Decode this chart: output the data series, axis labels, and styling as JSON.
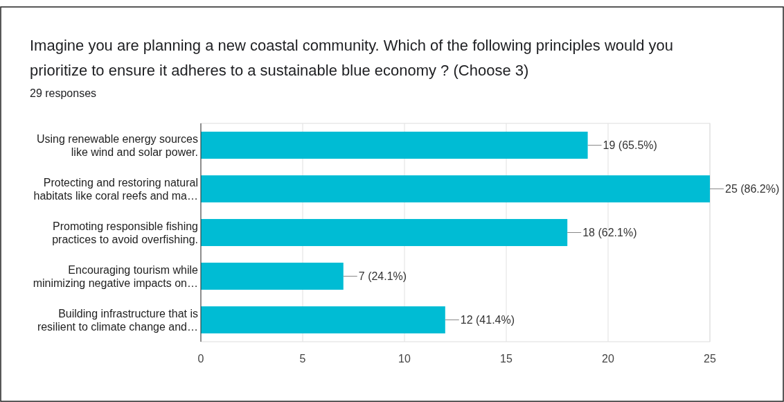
{
  "chart_data": {
    "type": "bar",
    "orientation": "horizontal",
    "title": "Imagine you are planning a new coastal community. Which of the following principles would you prioritize to ensure it adheres to a sustainable blue economy ? (Choose 3)",
    "subtitle": "29 responses",
    "categories": [
      "Using renewable energy sources\nlike wind and solar power.",
      "Protecting and restoring natural\nhabitats like coral reefs and ma…",
      "Promoting responsible fishing\npractices to avoid overfishing.",
      "Encouraging tourism while\nminimizing negative impacts on…",
      "Building infrastructure that is\nresilient to climate change and…"
    ],
    "values": [
      19,
      25,
      18,
      7,
      12
    ],
    "value_labels": [
      "19 (65.5%)",
      "25 (86.2%)",
      "18 (62.1%)",
      "7 (24.1%)",
      "12 (41.4%)"
    ],
    "color": "#00bcd4",
    "xlim": [
      0,
      25
    ],
    "xticks": [
      0,
      5,
      10,
      15,
      20,
      25
    ],
    "grid": "x"
  }
}
